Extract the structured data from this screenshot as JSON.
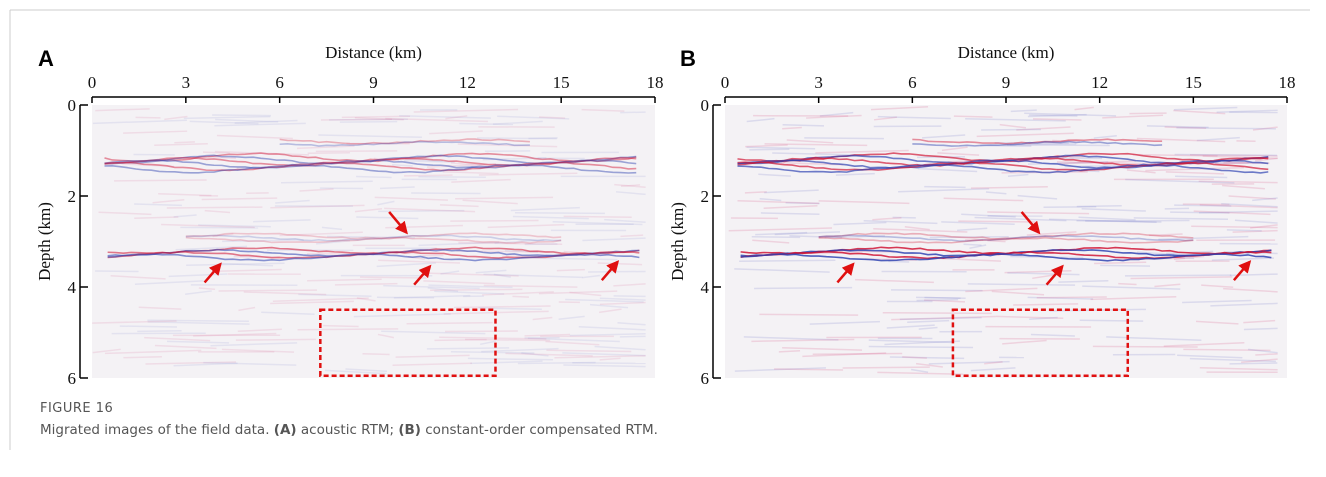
{
  "figure": {
    "panels": [
      {
        "label": "A",
        "x_label": "Distance (km)",
        "y_label": "Depth (km)",
        "xlim": [
          0,
          18
        ],
        "xticks": [
          0,
          3,
          6,
          9,
          12,
          15,
          18
        ],
        "ylim": [
          0,
          6
        ],
        "yticks": [
          0,
          2,
          4,
          6
        ]
      },
      {
        "label": "B",
        "x_label": "Distance (km)",
        "y_label": "Depth (km)",
        "xlim": [
          0,
          18
        ],
        "xticks": [
          0,
          3,
          6,
          9,
          12,
          15,
          18
        ],
        "ylim": [
          0,
          6
        ],
        "yticks": [
          0,
          2,
          4,
          6
        ]
      }
    ],
    "number": "FIGURE 16",
    "caption": [
      "Migrated images of the field data. ",
      "(A)",
      " acoustic RTM; ",
      "(B)",
      " constant-order compensated RTM."
    ]
  }
}
